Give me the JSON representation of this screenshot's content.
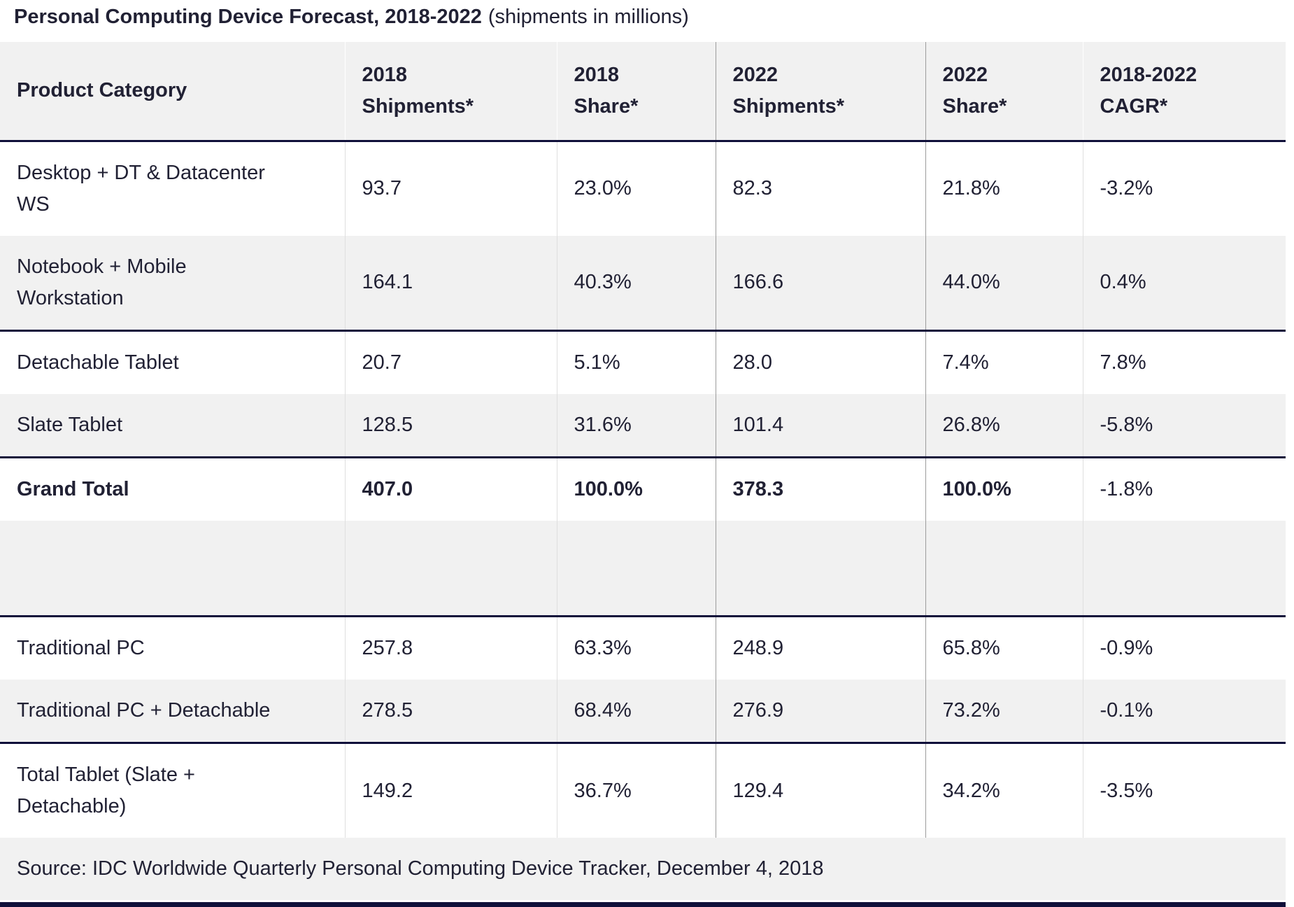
{
  "title": {
    "main": "Personal Computing Device Forecast, 2018-2022",
    "suffix": "(shipments in millions)"
  },
  "table": {
    "columns": [
      {
        "id": "product-category",
        "lines": [
          "Product Category"
        ]
      },
      {
        "id": "shipments-2018",
        "lines": [
          "2018",
          "Shipments*"
        ]
      },
      {
        "id": "share-2018",
        "lines": [
          "2018",
          "Share*"
        ]
      },
      {
        "id": "shipments-2022",
        "lines": [
          "2022",
          "Shipments*"
        ]
      },
      {
        "id": "share-2022",
        "lines": [
          "2022",
          "Share*"
        ]
      },
      {
        "id": "cagr-2018-2022",
        "lines": [
          "2018-2022",
          "CAGR*"
        ]
      }
    ],
    "rows": [
      {
        "label_lines": [
          "Desktop + DT & Datacenter",
          "WS"
        ],
        "values": [
          "93.7",
          "23.0%",
          "82.3",
          "21.8%",
          "-3.2%"
        ]
      },
      {
        "label_lines": [
          "Notebook + Mobile",
          "Workstation"
        ],
        "values": [
          "164.1",
          "40.3%",
          "166.6",
          "44.0%",
          "0.4%"
        ]
      },
      {
        "label_lines": [
          "Detachable Tablet"
        ],
        "values": [
          "20.7",
          "5.1%",
          "28.0",
          "7.4%",
          "7.8%"
        ]
      },
      {
        "label_lines": [
          "Slate Tablet"
        ],
        "values": [
          "128.5",
          "31.6%",
          "101.4",
          "26.8%",
          "-5.8%"
        ]
      },
      {
        "label_lines": [
          "Grand Total"
        ],
        "values": [
          "407.0",
          "100.0%",
          "378.3",
          "100.0%",
          "-1.8%"
        ],
        "bold": true,
        "bold_last_cell": false
      },
      {
        "label_lines": [],
        "values": [
          "",
          "",
          "",
          "",
          ""
        ],
        "empty": true
      },
      {
        "label_lines": [
          "Traditional PC"
        ],
        "values": [
          "257.8",
          "63.3%",
          "248.9",
          "65.8%",
          "-0.9%"
        ]
      },
      {
        "label_lines": [
          "Traditional PC + Detachable"
        ],
        "values": [
          "278.5",
          "68.4%",
          "276.9",
          "73.2%",
          "-0.1%"
        ]
      },
      {
        "label_lines": [
          "Total Tablet (Slate +",
          "Detachable)"
        ],
        "values": [
          "149.2",
          "36.7%",
          "129.4",
          "34.2%",
          "-3.5%"
        ]
      }
    ],
    "source_note": "Source: IDC Worldwide Quarterly Personal Computing Device Tracker, December 4, 2018"
  },
  "colors": {
    "navy_border": "#10103a",
    "text": "#212134",
    "gray_row": "#f1f1f1",
    "light_divider": "#dfdfdf",
    "medium_divider": "#9c9c9c"
  }
}
